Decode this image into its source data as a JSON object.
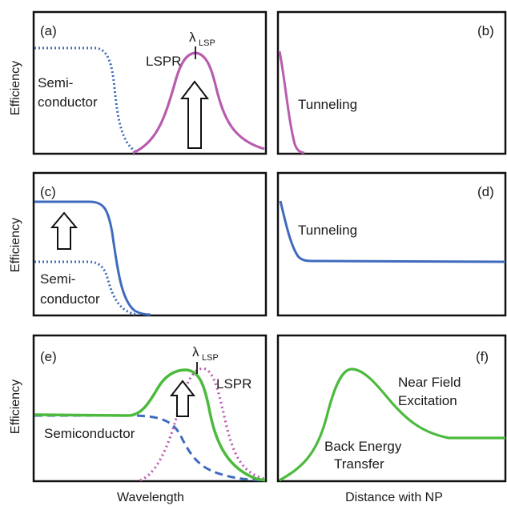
{
  "axes": {
    "y_label": "Efficiency",
    "x_label_left": "Wavelength",
    "x_label_right": "Distance with NP"
  },
  "panels": {
    "a": {
      "tag": "(a)",
      "lambda": "λ",
      "lambda_sub": "LSP",
      "lspr": "LSPR",
      "semi_line1": "Semi-",
      "semi_line2": "conductor"
    },
    "b": {
      "tag": "(b)",
      "tunneling": "Tunneling"
    },
    "c": {
      "tag": "(c)",
      "semi_line1": "Semi-",
      "semi_line2": "conductor"
    },
    "d": {
      "tag": "(d)",
      "tunneling": "Tunneling"
    },
    "e": {
      "tag": "(e)",
      "lambda": "λ",
      "lambda_sub": "LSP",
      "lspr": "LSPR",
      "semi": "Semiconductor"
    },
    "f": {
      "tag": "(f)",
      "near_line1": "Near Field",
      "near_line2": "Excitation",
      "back_line1": "Back Energy",
      "back_line2": "Transfer"
    }
  },
  "colors": {
    "lspr": "#b85cb0",
    "semiconductor": "#3f6bbd",
    "combined": "#4cba3d"
  }
}
